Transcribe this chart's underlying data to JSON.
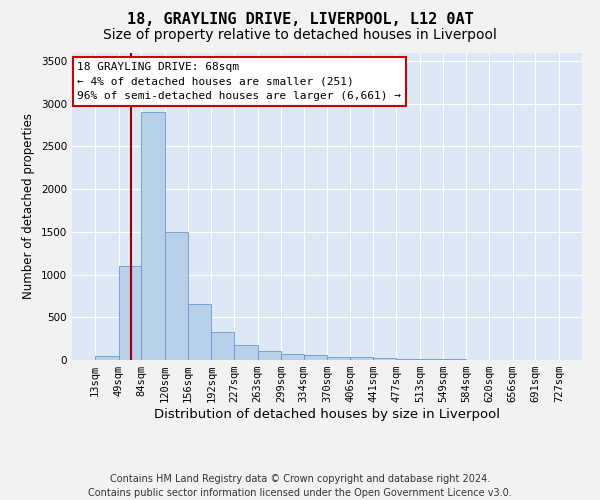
{
  "title1": "18, GRAYLING DRIVE, LIVERPOOL, L12 0AT",
  "title2": "Size of property relative to detached houses in Liverpool",
  "xlabel": "Distribution of detached houses by size in Liverpool",
  "ylabel": "Number of detached properties",
  "annotation_title": "18 GRAYLING DRIVE: 68sqm",
  "annotation_line1": "← 4% of detached houses are smaller (251)",
  "annotation_line2": "96% of semi-detached houses are larger (6,661) →",
  "footer1": "Contains HM Land Registry data © Crown copyright and database right 2024.",
  "footer2": "Contains public sector information licensed under the Open Government Licence v3.0.",
  "bar_edges": [
    13,
    49,
    84,
    120,
    156,
    192,
    227,
    263,
    299,
    334,
    370,
    406,
    441,
    477,
    513,
    549,
    584,
    620,
    656,
    691,
    727
  ],
  "bar_heights": [
    50,
    1100,
    2900,
    1500,
    650,
    330,
    175,
    100,
    70,
    55,
    40,
    30,
    20,
    15,
    10,
    8,
    5,
    4,
    3,
    2
  ],
  "bar_color": "#b8d0ea",
  "bar_edge_color": "#6699cc",
  "vline_color": "#990000",
  "vline_x": 68,
  "ylim": [
    0,
    3600
  ],
  "yticks": [
    0,
    500,
    1000,
    1500,
    2000,
    2500,
    3000,
    3500
  ],
  "background_color": "#dce8f5",
  "grid_color": "#ffffff",
  "fig_background": "#f2f2f2",
  "annotation_box_facecolor": "#ffffff",
  "annotation_box_edgecolor": "#cc0000",
  "title1_fontsize": 11,
  "title2_fontsize": 10,
  "xlabel_fontsize": 9.5,
  "ylabel_fontsize": 8.5,
  "tick_fontsize": 7.5,
  "annotation_fontsize": 8,
  "footer_fontsize": 7
}
